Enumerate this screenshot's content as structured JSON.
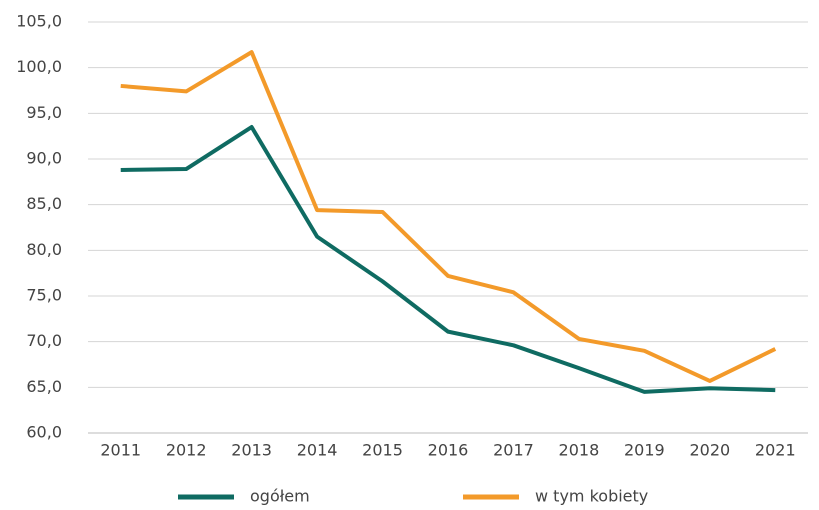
{
  "chart_data": {
    "type": "line",
    "categories": [
      "2011",
      "2012",
      "2013",
      "2014",
      "2015",
      "2016",
      "2017",
      "2018",
      "2019",
      "2020",
      "2021"
    ],
    "series": [
      {
        "name": "ogółem",
        "color": "#0f6b62",
        "values": [
          88.8,
          88.9,
          93.5,
          81.5,
          76.6,
          71.1,
          69.6,
          67.1,
          64.5,
          64.9,
          64.7
        ]
      },
      {
        "name": "w tym kobiety",
        "color": "#f39a2a",
        "values": [
          98.0,
          97.4,
          101.7,
          84.4,
          84.2,
          77.2,
          75.4,
          70.3,
          69.0,
          65.7,
          69.2
        ]
      }
    ],
    "ylim": [
      60,
      105
    ],
    "yticks": [
      {
        "value": 60,
        "label": "60,0"
      },
      {
        "value": 65,
        "label": "65,0"
      },
      {
        "value": 70,
        "label": "70,0"
      },
      {
        "value": 75,
        "label": "75,0"
      },
      {
        "value": 80,
        "label": "80,0"
      },
      {
        "value": 85,
        "label": "85,0"
      },
      {
        "value": 90,
        "label": "90,0"
      },
      {
        "value": 95,
        "label": "95,0"
      },
      {
        "value": 100,
        "label": "100,0"
      },
      {
        "value": 105,
        "label": "105,0"
      }
    ],
    "grid": true,
    "legend": "bottom"
  }
}
